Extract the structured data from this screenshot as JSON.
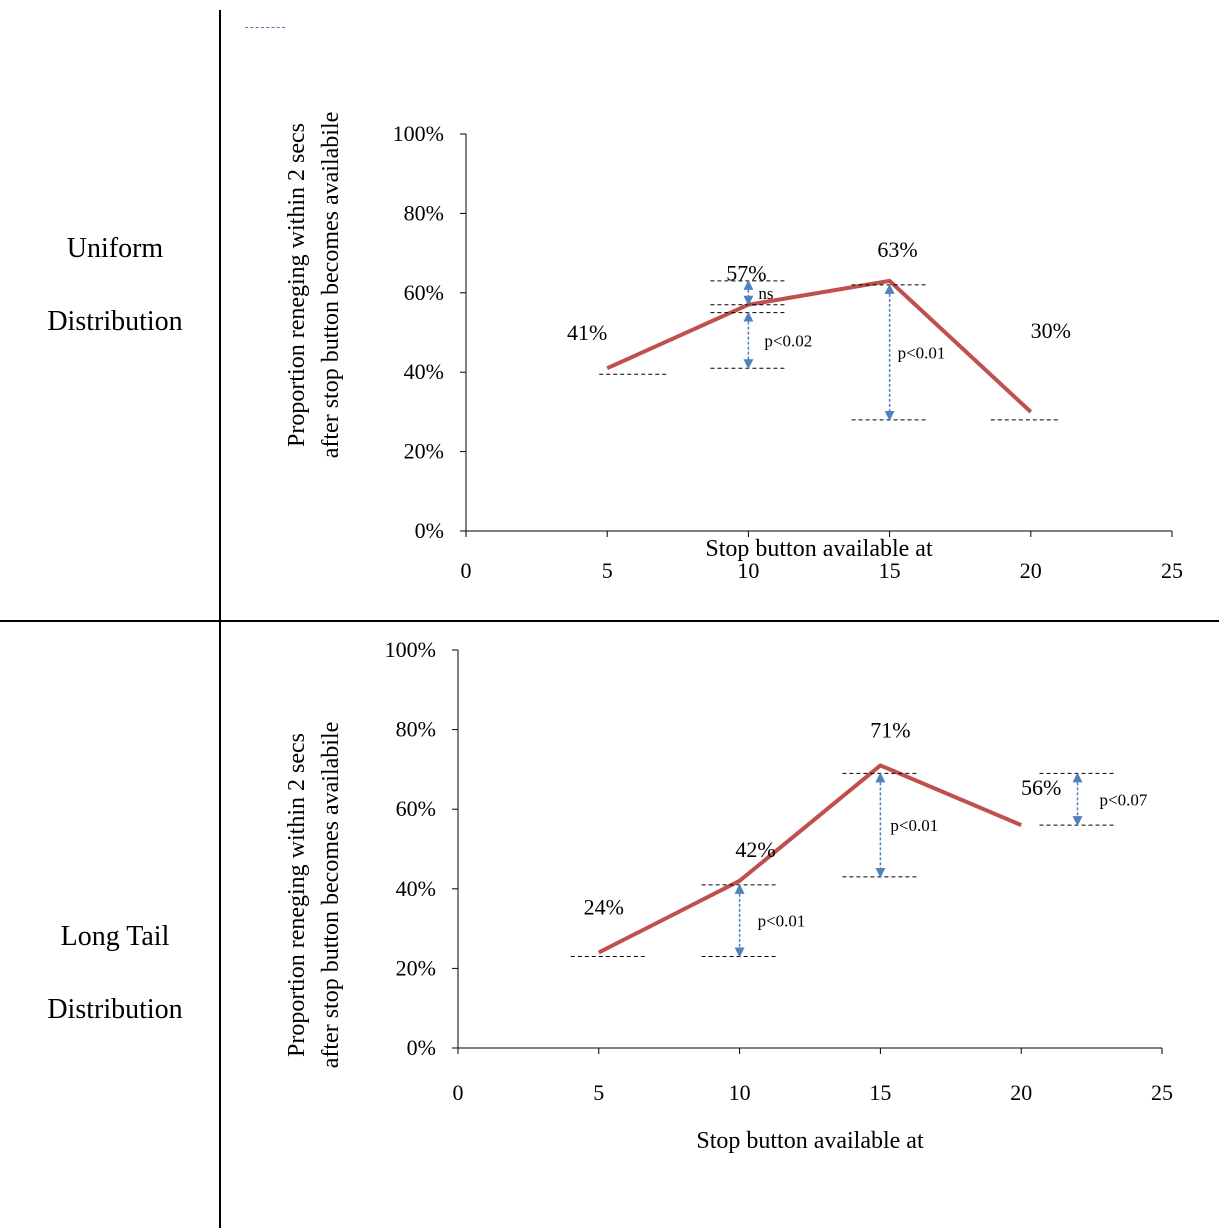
{
  "rows": [
    {
      "label_line1": "Uniform",
      "label_line2": "Distribution"
    },
    {
      "label_line1": "Long Tail",
      "label_line2": "Distribution"
    }
  ],
  "colors": {
    "line": "#c0504d",
    "arrow": "#4f81bd",
    "guide": "#000000"
  },
  "chart_data": [
    {
      "type": "line",
      "xlabel": "Stop button available at",
      "ylabel_line1": "Proportion reneging within 2 secs",
      "ylabel_line2": "after stop button becomes availabile",
      "xlim": [
        0,
        25
      ],
      "ylim": [
        0,
        1
      ],
      "xticks": [
        0,
        5,
        10,
        15,
        20,
        25
      ],
      "yticks": [
        "0%",
        "20%",
        "40%",
        "60%",
        "80%",
        "100%"
      ],
      "series": [
        {
          "x": [
            5,
            10,
            15,
            20
          ],
          "values": [
            0.41,
            0.57,
            0.63,
            0.3
          ]
        }
      ],
      "data_labels": [
        "41%",
        "57%",
        "63%",
        "30%"
      ],
      "comparisons": [
        {
          "from_x": 10,
          "upper": 0.63,
          "lower": 0.57,
          "label": "ns"
        },
        {
          "from_x": 10,
          "upper": 0.55,
          "lower": 0.41,
          "label": "p<0.02"
        },
        {
          "from_x": 15,
          "upper": 0.62,
          "lower": 0.28,
          "label": "p<0.01"
        }
      ]
    },
    {
      "type": "line",
      "xlabel": "Stop button available at",
      "ylabel_line1": "Proportion reneging within 2 secs",
      "ylabel_line2": "after stop button becomes availabile",
      "xlim": [
        0,
        25
      ],
      "ylim": [
        0,
        1
      ],
      "xticks": [
        0,
        5,
        10,
        15,
        20,
        25
      ],
      "yticks": [
        "0%",
        "20%",
        "40%",
        "60%",
        "80%",
        "100%"
      ],
      "series": [
        {
          "x": [
            5,
            10,
            15,
            20
          ],
          "values": [
            0.24,
            0.42,
            0.71,
            0.56
          ]
        }
      ],
      "data_labels": [
        "24%",
        "42%",
        "71%",
        "56%"
      ],
      "comparisons": [
        {
          "from_x": 10,
          "upper": 0.41,
          "lower": 0.23,
          "label": "p<0.01"
        },
        {
          "from_x": 15,
          "upper": 0.69,
          "lower": 0.43,
          "label": "p<0.01"
        },
        {
          "from_x": 22,
          "upper": 0.69,
          "lower": 0.56,
          "label": "p<0.07"
        }
      ]
    }
  ]
}
